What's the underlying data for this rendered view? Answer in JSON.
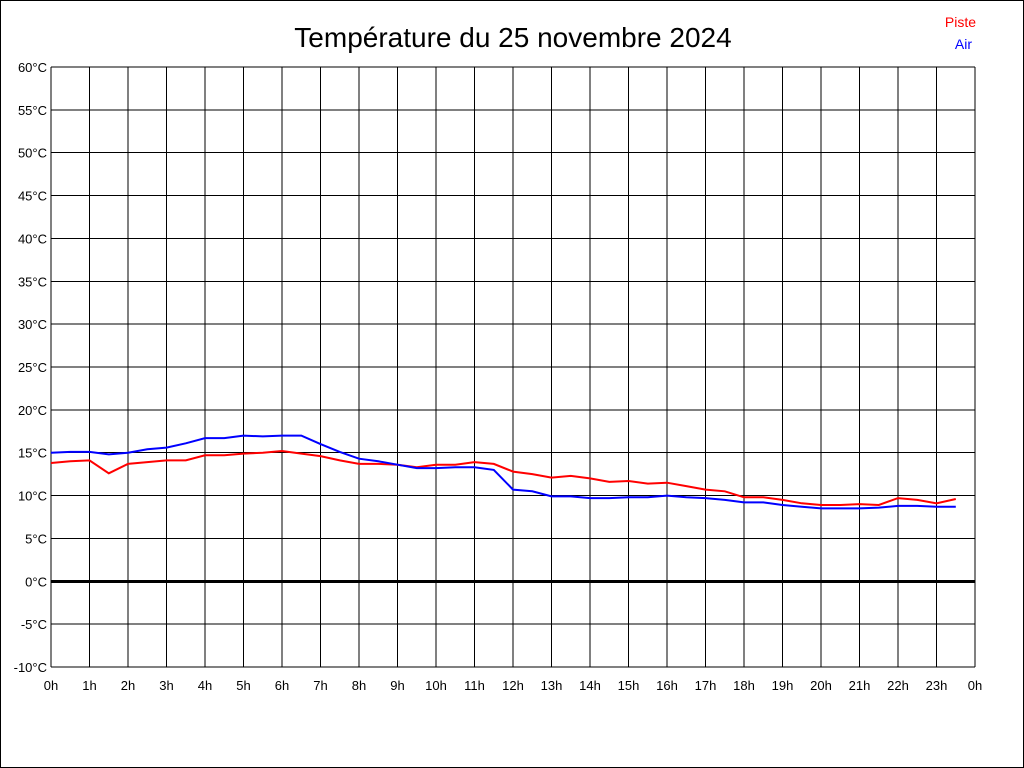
{
  "chart_data": {
    "type": "line",
    "title": "Température du 25 novembre 2024",
    "xlabel": "",
    "ylabel": "",
    "xlim": [
      0,
      24
    ],
    "ylim": [
      -10,
      60
    ],
    "grid": true,
    "legend_placement": "top-right",
    "x_tick_labels": [
      "0h",
      "1h",
      "2h",
      "3h",
      "4h",
      "5h",
      "6h",
      "7h",
      "8h",
      "9h",
      "10h",
      "11h",
      "12h",
      "13h",
      "14h",
      "15h",
      "16h",
      "17h",
      "18h",
      "19h",
      "20h",
      "21h",
      "22h",
      "23h",
      "0h"
    ],
    "y_tick_labels": [
      "60°C",
      "55°C",
      "50°C",
      "45°C",
      "40°C",
      "35°C",
      "30°C",
      "25°C",
      "20°C",
      "15°C",
      "10°C",
      "5°C",
      "0°C",
      "-5°C",
      "-10°C"
    ],
    "y_ticks": [
      60,
      55,
      50,
      45,
      40,
      35,
      30,
      25,
      20,
      15,
      10,
      5,
      0,
      -5,
      -10
    ],
    "x_hours": [
      0,
      0.5,
      1,
      1.5,
      2,
      2.5,
      3,
      3.5,
      4,
      4.5,
      5,
      5.5,
      6,
      6.5,
      7,
      7.5,
      8,
      8.5,
      9,
      9.5,
      10,
      10.5,
      11,
      11.5,
      12,
      12.5,
      13,
      13.5,
      14,
      14.5,
      15,
      15.5,
      16,
      16.5,
      17,
      17.5,
      18,
      18.5,
      19,
      19.5,
      20,
      20.5,
      21,
      21.5,
      22,
      22.5,
      23,
      23.5
    ],
    "series": [
      {
        "name": "Piste",
        "color": "#ff0000",
        "values": [
          13.8,
          14.0,
          14.1,
          12.6,
          13.7,
          13.9,
          14.1,
          14.1,
          14.7,
          14.7,
          14.9,
          15.0,
          15.2,
          14.9,
          14.6,
          14.1,
          13.7,
          13.7,
          13.6,
          13.3,
          13.6,
          13.6,
          13.9,
          13.7,
          12.8,
          12.5,
          12.1,
          12.3,
          12.0,
          11.6,
          11.7,
          11.4,
          11.5,
          11.1,
          10.7,
          10.5,
          9.8,
          9.8,
          9.5,
          9.1,
          8.9,
          8.9,
          9.0,
          8.9,
          9.7,
          9.5,
          9.1,
          9.6
        ]
      },
      {
        "name": "Air",
        "color": "#0000ff",
        "values": [
          15.0,
          15.1,
          15.1,
          14.8,
          15.0,
          15.4,
          15.6,
          16.1,
          16.7,
          16.7,
          17.0,
          16.9,
          17.0,
          17.0,
          16.0,
          15.1,
          14.3,
          14.0,
          13.6,
          13.2,
          13.2,
          13.3,
          13.3,
          13.0,
          10.7,
          10.5,
          9.9,
          9.9,
          9.7,
          9.7,
          9.8,
          9.8,
          10.0,
          9.8,
          9.7,
          9.5,
          9.2,
          9.2,
          8.9,
          8.7,
          8.5,
          8.5,
          8.5,
          8.6,
          8.8,
          8.8,
          8.7,
          8.7
        ]
      }
    ]
  }
}
